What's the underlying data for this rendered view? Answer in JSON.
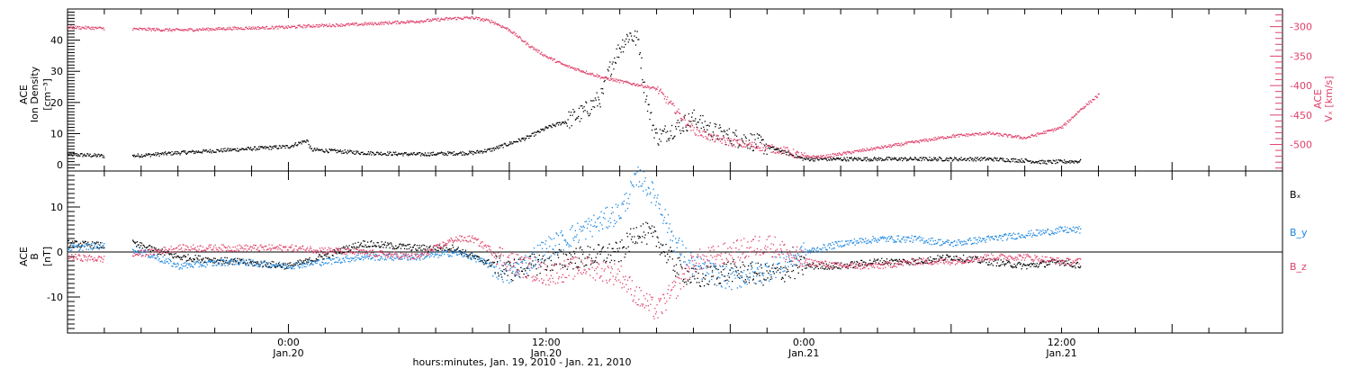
{
  "chart_data": [
    {
      "type": "scatter",
      "ylabel_left_lines": [
        "ACE",
        "Ion Density",
        "[cm⁻³]"
      ],
      "ylabel_right_lines": [
        "ACE",
        "Vₓ [km/s]"
      ],
      "xlim_hours": [
        0,
        66
      ],
      "ylim_left": [
        -2,
        50
      ],
      "ylim_right": [
        -545,
        -270
      ],
      "yticks_left": [
        "0",
        "10",
        "20",
        "30",
        "40"
      ],
      "yticks_left_values": [
        0,
        10,
        20,
        30,
        40
      ],
      "yticks_right": [
        "-300",
        "-350",
        "-400",
        "-450",
        "-500"
      ],
      "yticks_right_values": [
        -300,
        -350,
        -400,
        -450,
        -500
      ],
      "series": [
        {
          "axis": "left",
          "color": "#000000",
          "points": [
            [
              0,
              3.5
            ],
            [
              2,
              3
            ],
            [
              3,
              null
            ],
            [
              3.5,
              3
            ],
            [
              6,
              4
            ],
            [
              9,
              5
            ],
            [
              12,
              6
            ],
            [
              13,
              8
            ],
            [
              13.2,
              5
            ],
            [
              16,
              4
            ],
            [
              19,
              3.5
            ],
            [
              22,
              4
            ],
            [
              23,
              5
            ],
            [
              24,
              7
            ],
            [
              25,
              9
            ],
            [
              26,
              12
            ],
            [
              27,
              14
            ],
            [
              28,
              17
            ],
            [
              29,
              22
            ],
            [
              29.5,
              32
            ],
            [
              30,
              38
            ],
            [
              30.5,
              42
            ],
            [
              31,
              40
            ],
            [
              31.3,
              25
            ],
            [
              31.7,
              14
            ],
            [
              32,
              9
            ],
            [
              33,
              12
            ],
            [
              34,
              15
            ],
            [
              35,
              11
            ],
            [
              36,
              9
            ],
            [
              37,
              8
            ],
            [
              38,
              6
            ],
            [
              39,
              4
            ],
            [
              40,
              2
            ],
            [
              42,
              2
            ],
            [
              46,
              2
            ],
            [
              50,
              2
            ],
            [
              52,
              1.5
            ],
            [
              53,
              1
            ],
            [
              55,
              1.3
            ]
          ]
        },
        {
          "axis": "right",
          "color": "#e0406a",
          "points": [
            [
              0,
              -300
            ],
            [
              2,
              -302
            ],
            [
              3,
              null
            ],
            [
              3.5,
              -303
            ],
            [
              6,
              -305
            ],
            [
              9,
              -302
            ],
            [
              12,
              -300
            ],
            [
              13,
              -298
            ],
            [
              16,
              -295
            ],
            [
              19,
              -290
            ],
            [
              21,
              -285
            ],
            [
              22,
              -284
            ],
            [
              23,
              -290
            ],
            [
              24,
              -305
            ],
            [
              25,
              -330
            ],
            [
              26,
              -350
            ],
            [
              27,
              -365
            ],
            [
              28,
              -375
            ],
            [
              29,
              -385
            ],
            [
              30,
              -392
            ],
            [
              31,
              -398
            ],
            [
              32,
              -405
            ],
            [
              33,
              -440
            ],
            [
              34,
              -475
            ],
            [
              35,
              -488
            ],
            [
              36,
              -495
            ],
            [
              37,
              -500
            ],
            [
              38,
              -505
            ],
            [
              39,
              -510
            ],
            [
              40,
              -520
            ],
            [
              41,
              -520
            ],
            [
              42,
              -515
            ],
            [
              44,
              -505
            ],
            [
              46,
              -495
            ],
            [
              48,
              -485
            ],
            [
              50,
              -480
            ],
            [
              52,
              -488
            ],
            [
              54,
              -470
            ],
            [
              55,
              -440
            ],
            [
              56,
              -415
            ]
          ]
        }
      ]
    },
    {
      "type": "scatter",
      "ylabel_lines": [
        "ACE",
        "B",
        "[nT]"
      ],
      "xlim_hours": [
        0,
        66
      ],
      "ylim": [
        -18,
        18
      ],
      "yticks": [
        "10",
        "0",
        "-10"
      ],
      "yticks_values": [
        10,
        0,
        -10
      ],
      "series": [
        {
          "name": "Bₓ",
          "color": "#000000",
          "points": [
            [
              0,
              2
            ],
            [
              2,
              1.5
            ],
            [
              3,
              null
            ],
            [
              3.5,
              2
            ],
            [
              6,
              -1
            ],
            [
              9,
              -2
            ],
            [
              12,
              -3
            ],
            [
              13,
              -2
            ],
            [
              16,
              2
            ],
            [
              19,
              1
            ],
            [
              21,
              1
            ],
            [
              22,
              -1
            ],
            [
              24,
              -4
            ],
            [
              26,
              -2
            ],
            [
              28,
              -1
            ],
            [
              30,
              0
            ],
            [
              31,
              5
            ],
            [
              32,
              3
            ],
            [
              33,
              -3
            ],
            [
              34,
              -6
            ],
            [
              36,
              -4
            ],
            [
              38,
              -5
            ],
            [
              40,
              -3
            ],
            [
              42,
              -3
            ],
            [
              44,
              -2
            ],
            [
              46,
              -2
            ],
            [
              48,
              -1
            ],
            [
              50,
              -2
            ],
            [
              52,
              -3
            ],
            [
              54,
              -2
            ],
            [
              55,
              -3
            ]
          ]
        },
        {
          "name": "B_y",
          "color": "#1a86e0",
          "points": [
            [
              0,
              1
            ],
            [
              2,
              1.5
            ],
            [
              3,
              null
            ],
            [
              3.5,
              1
            ],
            [
              6,
              -3
            ],
            [
              9,
              -2
            ],
            [
              12,
              -3
            ],
            [
              16,
              -1
            ],
            [
              19,
              -1
            ],
            [
              21,
              0
            ],
            [
              22,
              -1
            ],
            [
              24,
              -5
            ],
            [
              26,
              1
            ],
            [
              28,
              5
            ],
            [
              30,
              9
            ],
            [
              31,
              17
            ],
            [
              32,
              12
            ],
            [
              33,
              2
            ],
            [
              34,
              -3
            ],
            [
              36,
              -6
            ],
            [
              38,
              -4
            ],
            [
              40,
              0
            ],
            [
              42,
              2
            ],
            [
              44,
              3
            ],
            [
              46,
              3
            ],
            [
              48,
              2
            ],
            [
              50,
              3
            ],
            [
              52,
              4
            ],
            [
              54,
              5
            ],
            [
              55,
              5
            ]
          ]
        },
        {
          "name": "B_z",
          "color": "#e0406a",
          "points": [
            [
              0,
              -1
            ],
            [
              2,
              -1.5
            ],
            [
              3,
              null
            ],
            [
              3.5,
              -0.5
            ],
            [
              6,
              1
            ],
            [
              9,
              1
            ],
            [
              12,
              1
            ],
            [
              16,
              0
            ],
            [
              19,
              -1
            ],
            [
              21,
              3
            ],
            [
              22,
              3
            ],
            [
              24,
              -2
            ],
            [
              26,
              -5
            ],
            [
              28,
              -3
            ],
            [
              30,
              -5
            ],
            [
              31,
              -10
            ],
            [
              32,
              -13
            ],
            [
              33,
              -8
            ],
            [
              34,
              -2
            ],
            [
              36,
              0
            ],
            [
              38,
              2
            ],
            [
              40,
              -2
            ],
            [
              42,
              -3
            ],
            [
              44,
              -3
            ],
            [
              46,
              -2
            ],
            [
              48,
              -2
            ],
            [
              50,
              -1
            ],
            [
              52,
              -1
            ],
            [
              54,
              -2
            ],
            [
              55,
              -2
            ]
          ]
        }
      ],
      "legend": [
        "Bₓ",
        "B_y",
        "B_z"
      ]
    }
  ],
  "x_axis": {
    "ticks": [
      {
        "hour": 12,
        "time": "0:00",
        "date": "Jan.20"
      },
      {
        "hour": 26,
        "time": "12:00",
        "date": "Jan.20"
      },
      {
        "hour": 40,
        "time": "0:00",
        "date": "Jan.21"
      },
      {
        "hour": 54,
        "time": "12:00",
        "date": "Jan.21"
      }
    ],
    "label": "hours:minutes, Jan. 19, 2010 - Jan. 21, 2010"
  },
  "colors": {
    "black": "#000000",
    "red": "#e0406a",
    "blue": "#1a86e0"
  }
}
